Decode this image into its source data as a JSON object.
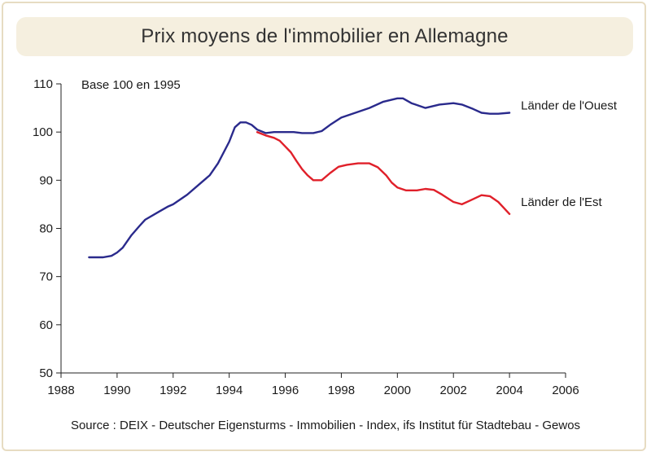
{
  "chart_data": {
    "type": "line",
    "title": "Prix moyens de l'immobilier en Allemagne",
    "subtitle": "Base 100 en 1995",
    "source": "Source : DEIX - Deutscher Eigensturms - Immobilien - Index, ifs Institut für Stadtebau - Gewos",
    "xlim": [
      1988,
      2006
    ],
    "ylim": [
      50,
      110
    ],
    "xticks": [
      "1988",
      "1990",
      "1992",
      "1994",
      "1996",
      "1998",
      "2000",
      "2002",
      "2004",
      "2006"
    ],
    "yticks": [
      "50",
      "60",
      "70",
      "80",
      "90",
      "100",
      "110"
    ],
    "grid": false,
    "series": [
      {
        "name": "Länder de l'Ouest",
        "color": "#2a2a8c",
        "points": [
          [
            1989.0,
            74.0
          ],
          [
            1989.5,
            74.0
          ],
          [
            1989.8,
            74.3
          ],
          [
            1990.0,
            75.0
          ],
          [
            1990.2,
            76.0
          ],
          [
            1990.5,
            78.5
          ],
          [
            1990.8,
            80.5
          ],
          [
            1991.0,
            81.8
          ],
          [
            1991.5,
            83.5
          ],
          [
            1991.8,
            84.5
          ],
          [
            1992.0,
            85.0
          ],
          [
            1992.5,
            87.0
          ],
          [
            1993.0,
            89.5
          ],
          [
            1993.3,
            91.0
          ],
          [
            1993.6,
            93.5
          ],
          [
            1994.0,
            98.0
          ],
          [
            1994.2,
            101.0
          ],
          [
            1994.4,
            102.0
          ],
          [
            1994.6,
            102.0
          ],
          [
            1994.8,
            101.5
          ],
          [
            1995.0,
            100.5
          ],
          [
            1995.3,
            99.8
          ],
          [
            1995.6,
            100.0
          ],
          [
            1996.0,
            100.0
          ],
          [
            1996.3,
            100.0
          ],
          [
            1996.6,
            99.8
          ],
          [
            1997.0,
            99.8
          ],
          [
            1997.3,
            100.2
          ],
          [
            1997.6,
            101.5
          ],
          [
            1998.0,
            103.0
          ],
          [
            1998.5,
            104.0
          ],
          [
            1999.0,
            105.0
          ],
          [
            1999.5,
            106.3
          ],
          [
            2000.0,
            107.0
          ],
          [
            2000.2,
            107.0
          ],
          [
            2000.5,
            106.0
          ],
          [
            2001.0,
            105.0
          ],
          [
            2001.5,
            105.7
          ],
          [
            2002.0,
            106.0
          ],
          [
            2002.3,
            105.7
          ],
          [
            2002.7,
            104.8
          ],
          [
            2003.0,
            104.0
          ],
          [
            2003.3,
            103.8
          ],
          [
            2003.6,
            103.8
          ],
          [
            2004.0,
            104.0
          ]
        ]
      },
      {
        "name": "Länder de l'Est",
        "color": "#e0202a",
        "points": [
          [
            1995.0,
            100.0
          ],
          [
            1995.3,
            99.3
          ],
          [
            1995.6,
            98.8
          ],
          [
            1995.8,
            98.2
          ],
          [
            1996.0,
            97.0
          ],
          [
            1996.2,
            95.8
          ],
          [
            1996.4,
            94.0
          ],
          [
            1996.6,
            92.3
          ],
          [
            1996.8,
            91.0
          ],
          [
            1997.0,
            90.0
          ],
          [
            1997.3,
            90.0
          ],
          [
            1997.6,
            91.5
          ],
          [
            1997.9,
            92.8
          ],
          [
            1998.2,
            93.2
          ],
          [
            1998.6,
            93.5
          ],
          [
            1999.0,
            93.5
          ],
          [
            1999.3,
            92.7
          ],
          [
            1999.6,
            91.0
          ],
          [
            1999.8,
            89.5
          ],
          [
            2000.0,
            88.5
          ],
          [
            2000.3,
            87.9
          ],
          [
            2000.7,
            87.9
          ],
          [
            2001.0,
            88.2
          ],
          [
            2001.3,
            88.0
          ],
          [
            2001.6,
            87.0
          ],
          [
            2002.0,
            85.5
          ],
          [
            2002.3,
            85.0
          ],
          [
            2002.6,
            85.8
          ],
          [
            2003.0,
            86.9
          ],
          [
            2003.3,
            86.7
          ],
          [
            2003.6,
            85.5
          ],
          [
            2004.0,
            83.0
          ]
        ]
      }
    ]
  }
}
